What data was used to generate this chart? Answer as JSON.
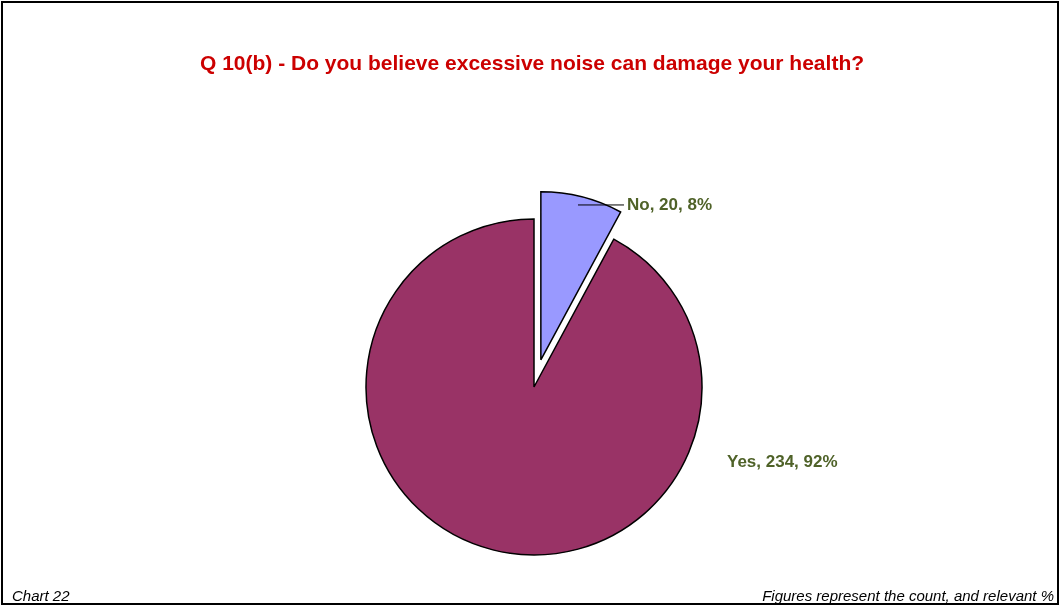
{
  "chart_data": {
    "type": "pie",
    "title": "Q 10(b)  - Do you believe excessive noise can damage your health?",
    "categories": [
      "No",
      "Yes"
    ],
    "values": [
      20,
      234
    ],
    "colors": [
      "#9999ff",
      "#993366"
    ],
    "value_labels": [
      "20, 8%",
      "234, 92%"
    ],
    "annotations": [
      "Chart 22",
      "Figures represent the count, and relevant %"
    ]
  }
}
